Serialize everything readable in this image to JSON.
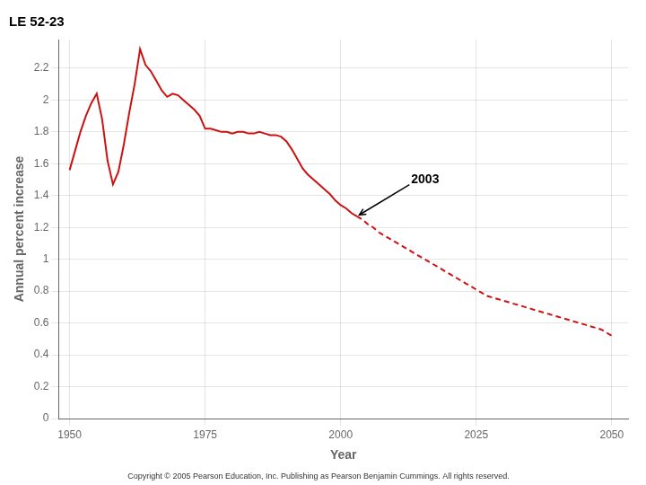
{
  "chart_data": {
    "type": "line",
    "title": "LE 52-23",
    "caption": "Copyright © 2005 Pearson Education, Inc. Publishing as Pearson Benjamin Cummings. All rights reserved.",
    "x_label": "Year",
    "y_label": "Annual percent increase",
    "xlim": [
      1948,
      2053
    ],
    "ylim": [
      0,
      2.38
    ],
    "xticks": [
      1950,
      1975,
      2000,
      2025,
      2050
    ],
    "yticks": [
      0,
      0.2,
      0.4,
      0.6,
      0.8,
      1,
      1.2,
      1.4,
      1.6,
      1.8,
      2,
      2.2
    ],
    "grid": true,
    "annotations": [
      {
        "text": "2003",
        "x": 2003,
        "y": 1.27,
        "text_x": 2013,
        "text_y": 1.48
      }
    ],
    "series": [
      {
        "color": "#cc1111",
        "line_style": "solid",
        "x": [
          1950,
          1951,
          1952,
          1953,
          1954,
          1955,
          1956,
          1957,
          1958,
          1959,
          1960,
          1961,
          1962,
          1963,
          1964,
          1965,
          1966,
          1967,
          1968,
          1969,
          1970,
          1971,
          1972,
          1973,
          1974,
          1975,
          1976,
          1977,
          1978,
          1979,
          1980,
          1981,
          1982,
          1983,
          1984,
          1985,
          1986,
          1987,
          1988,
          1989,
          1990,
          1991,
          1992,
          1993,
          1994,
          1995,
          1996,
          1997,
          1998,
          1999,
          2000,
          2001,
          2002,
          2003
        ],
        "values": [
          1.56,
          1.68,
          1.8,
          1.9,
          1.98,
          2.04,
          1.88,
          1.62,
          1.47,
          1.55,
          1.72,
          1.92,
          2.1,
          2.32,
          2.22,
          2.18,
          2.12,
          2.06,
          2.02,
          2.04,
          2.03,
          2.0,
          1.97,
          1.94,
          1.9,
          1.82,
          1.82,
          1.81,
          1.8,
          1.8,
          1.79,
          1.8,
          1.8,
          1.79,
          1.79,
          1.8,
          1.79,
          1.78,
          1.78,
          1.77,
          1.74,
          1.69,
          1.63,
          1.57,
          1.53,
          1.5,
          1.47,
          1.44,
          1.41,
          1.37,
          1.34,
          1.32,
          1.29,
          1.27
        ]
      },
      {
        "color": "#cc1111",
        "line_style": "dashed",
        "x": [
          2003,
          2004,
          2005,
          2006,
          2007,
          2008,
          2009,
          2010,
          2011,
          2012,
          2013,
          2014,
          2015,
          2016,
          2017,
          2018,
          2019,
          2020,
          2021,
          2022,
          2023,
          2024,
          2025,
          2026,
          2027,
          2028,
          2029,
          2030,
          2031,
          2032,
          2033,
          2034,
          2035,
          2036,
          2037,
          2038,
          2039,
          2040,
          2041,
          2042,
          2043,
          2044,
          2045,
          2046,
          2047,
          2048,
          2049,
          2050
        ],
        "values": [
          1.27,
          1.25,
          1.22,
          1.2,
          1.17,
          1.15,
          1.13,
          1.11,
          1.09,
          1.07,
          1.05,
          1.03,
          1.01,
          0.99,
          0.97,
          0.95,
          0.93,
          0.91,
          0.89,
          0.87,
          0.85,
          0.83,
          0.81,
          0.79,
          0.77,
          0.76,
          0.75,
          0.74,
          0.73,
          0.72,
          0.71,
          0.7,
          0.69,
          0.68,
          0.67,
          0.66,
          0.65,
          0.64,
          0.63,
          0.62,
          0.61,
          0.6,
          0.59,
          0.58,
          0.57,
          0.56,
          0.54,
          0.52
        ]
      }
    ]
  }
}
